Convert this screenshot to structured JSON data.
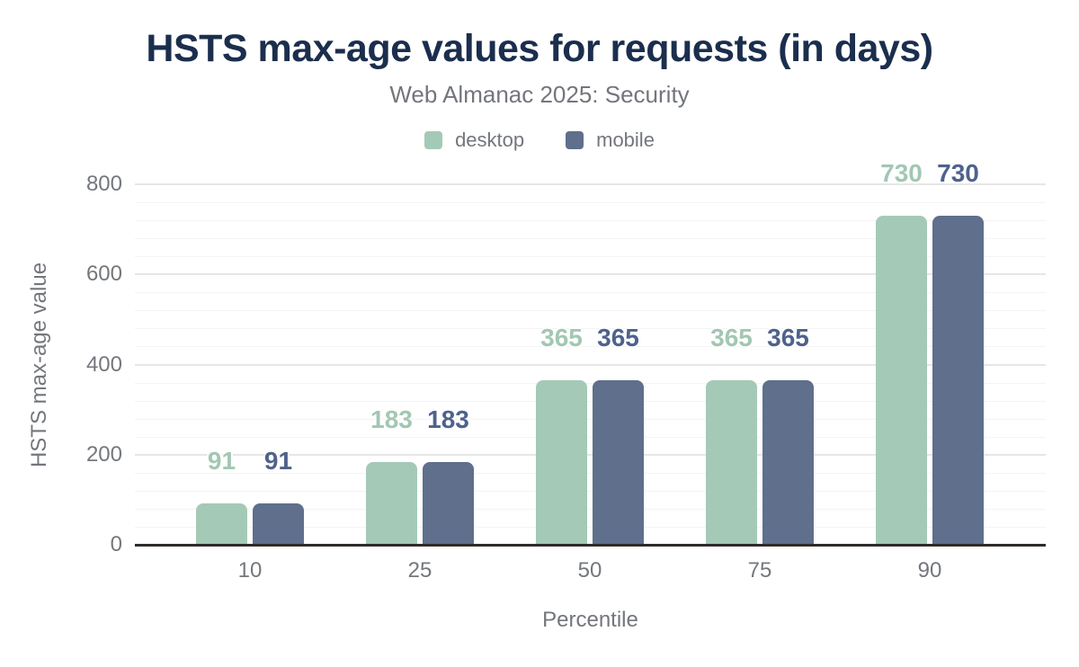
{
  "header": {
    "title": "HSTS max-age values for requests (in days)",
    "subtitle": "Web Almanac 2025: Security"
  },
  "legend": {
    "items": [
      {
        "label": "desktop",
        "color": "#a5c9b7"
      },
      {
        "label": "mobile",
        "color": "#5f6f8c"
      }
    ]
  },
  "chart_data": {
    "type": "bar",
    "title": "HSTS max-age values for requests (in days)",
    "subtitle": "Web Almanac 2025: Security",
    "categories": [
      "10",
      "25",
      "50",
      "75",
      "90"
    ],
    "series": [
      {
        "name": "desktop",
        "values": [
          91,
          183,
          365,
          365,
          730
        ],
        "color": "#a5c9b7",
        "label_color": "#a2c7b3"
      },
      {
        "name": "mobile",
        "values": [
          91,
          183,
          365,
          365,
          730
        ],
        "color": "#5f6f8c",
        "label_color": "#4f628c"
      }
    ],
    "xlabel": "Percentile",
    "ylabel": "HSTS max-age value",
    "ylim": [
      0,
      800
    ],
    "yticks": [
      0,
      200,
      400,
      600,
      800
    ],
    "minor_gridline_step": 40,
    "grid": "on",
    "legend_position": "top",
    "bar_value_labels": true
  },
  "colors": {
    "title": "#1b2e4d",
    "secondary_text": "#73767c",
    "axis_line": "#2e2b29",
    "gridline_major": "#e6e6e6",
    "gridline_minor": "#f4f4f4",
    "background": "#ffffff"
  }
}
